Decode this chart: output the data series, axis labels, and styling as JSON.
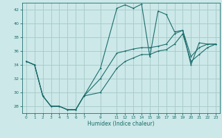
{
  "xlabel": "Humidex (Indice chaleur)",
  "bg_color": "#cce8e8",
  "grid_color": "#aacccc",
  "line_color": "#1a6b6b",
  "xlim": [
    -0.5,
    23.5
  ],
  "ylim": [
    27,
    43
  ],
  "xticks": [
    0,
    1,
    2,
    3,
    4,
    5,
    6,
    7,
    9,
    11,
    12,
    13,
    14,
    15,
    16,
    17,
    18,
    19,
    20,
    21,
    22,
    23
  ],
  "yticks": [
    28,
    30,
    32,
    34,
    36,
    38,
    40,
    42
  ],
  "series1_x": [
    0,
    1,
    2,
    3,
    4,
    5,
    6,
    7,
    9,
    11,
    12,
    13,
    14,
    15,
    16,
    17,
    18,
    19,
    20,
    21,
    22,
    23
  ],
  "series1_y": [
    34.5,
    34.0,
    29.5,
    28.0,
    28.0,
    27.5,
    27.5,
    29.5,
    33.5,
    42.2,
    42.7,
    42.2,
    42.8,
    35.2,
    41.8,
    41.3,
    38.8,
    39.0,
    34.0,
    37.2,
    37.0,
    37.0
  ],
  "series2_x": [
    0,
    1,
    2,
    3,
    4,
    5,
    6,
    7,
    9,
    11,
    12,
    13,
    14,
    15,
    16,
    17,
    18,
    19,
    20,
    21,
    22,
    23
  ],
  "series2_y": [
    34.5,
    34.0,
    29.5,
    28.0,
    28.0,
    27.5,
    27.5,
    29.5,
    32.0,
    35.7,
    36.0,
    36.3,
    36.5,
    36.5,
    36.7,
    37.0,
    38.5,
    39.0,
    35.2,
    36.5,
    37.0,
    37.0
  ],
  "series3_x": [
    0,
    1,
    2,
    3,
    4,
    5,
    6,
    7,
    9,
    11,
    12,
    13,
    14,
    15,
    16,
    17,
    18,
    19,
    20,
    21,
    22,
    23
  ],
  "series3_y": [
    34.5,
    34.0,
    29.5,
    28.0,
    28.0,
    27.5,
    27.5,
    29.5,
    30.0,
    33.5,
    34.5,
    35.0,
    35.5,
    35.5,
    36.0,
    36.2,
    37.0,
    38.5,
    34.5,
    35.5,
    36.5,
    37.0
  ]
}
